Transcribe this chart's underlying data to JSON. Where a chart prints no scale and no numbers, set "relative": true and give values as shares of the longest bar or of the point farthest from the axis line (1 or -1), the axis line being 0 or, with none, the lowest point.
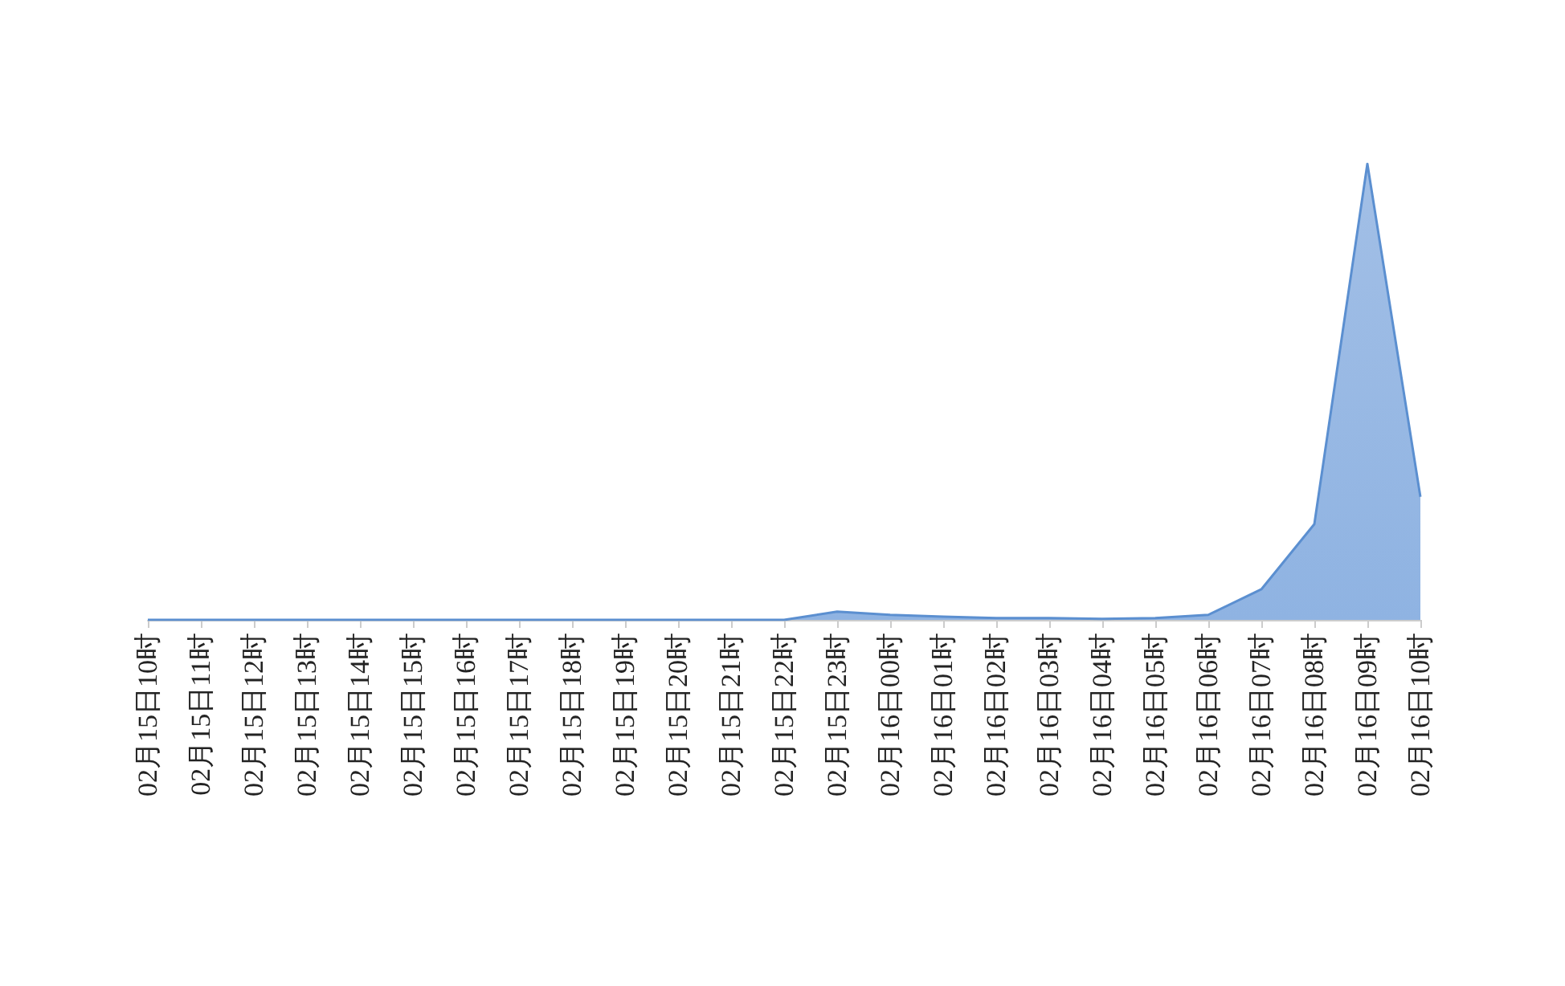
{
  "chart_data": {
    "type": "area",
    "relative": true,
    "categories": [
      "02月15日10时",
      "02月15日11时",
      "02月15日12时",
      "02月15日13时",
      "02月15日14时",
      "02月15日15时",
      "02月15日16时",
      "02月15日17时",
      "02月15日18时",
      "02月15日19时",
      "02月15日20时",
      "02月15日21时",
      "02月15日22时",
      "02月15日23时",
      "02月16日00时",
      "02月16日01时",
      "02月16日02时",
      "02月16日03时",
      "02月16日04时",
      "02月16日05时",
      "02月16日06时",
      "02月16日07时",
      "02月16日08时",
      "02月16日09时",
      "02月16日10时"
    ],
    "series": [
      {
        "color": "#5b8fd0",
        "values": [
          0,
          0,
          0,
          0,
          0,
          0,
          0,
          0,
          0,
          0,
          0,
          0,
          0,
          0.018,
          0.011,
          0.007,
          0.004,
          0.004,
          0.002,
          0.004,
          0.011,
          0.067,
          0.21,
          1,
          0.27
        ]
      }
    ],
    "grid": false,
    "marker": "none"
  }
}
